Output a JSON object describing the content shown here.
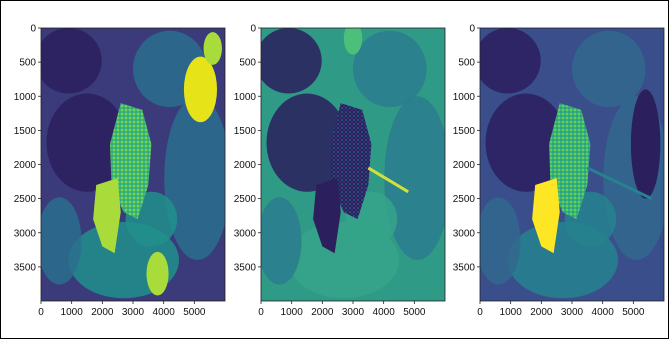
{
  "figure": {
    "panels": [
      {
        "name": "panel-left",
        "yticks": [
          "0",
          "500",
          "1000",
          "1500",
          "2000",
          "2500",
          "3000",
          "3500"
        ],
        "xticks": [
          "0",
          "1000",
          "2000",
          "3000",
          "4000",
          "5000"
        ],
        "palette": {
          "bg": "#3b3a7a",
          "dark": "#2b1f5e",
          "mid": "#2c6f8e",
          "teal": "#21918c",
          "green": "#3fbc73",
          "lime": "#a9dc3a",
          "yellow": "#e6e419"
        }
      },
      {
        "name": "panel-middle",
        "yticks": [
          "0",
          "500",
          "1000",
          "1500",
          "2000",
          "2500",
          "3000",
          "3500"
        ],
        "xticks": [
          "0",
          "1000",
          "2000",
          "3000",
          "4000",
          "5000"
        ],
        "palette": {
          "bg": "#2f9b86",
          "dark": "#2b1f5e",
          "mid": "#2a7d8e",
          "teal": "#35a58a",
          "green": "#4cc07a",
          "lime": "#7fd05a",
          "yellow": "#d3e039"
        }
      },
      {
        "name": "panel-right",
        "yticks": [
          "0",
          "500",
          "1000",
          "1500",
          "2000",
          "2500",
          "3000",
          "3500"
        ],
        "xticks": [
          "0",
          "1000",
          "2000",
          "3000",
          "4000",
          "5000"
        ],
        "palette": {
          "bg": "#3a4e8c",
          "dark": "#2b1f5e",
          "mid": "#31688e",
          "teal": "#26828e",
          "green": "#35b779",
          "lime": "#8fd744",
          "yellow": "#fde725"
        }
      }
    ],
    "tick_values_x": [
      0,
      1000,
      2000,
      3000,
      4000,
      5000
    ],
    "tick_values_y": [
      0,
      500,
      1000,
      1500,
      2000,
      2500,
      3000,
      3500
    ],
    "image_extent": {
      "width": 6000,
      "height": 4000
    }
  }
}
